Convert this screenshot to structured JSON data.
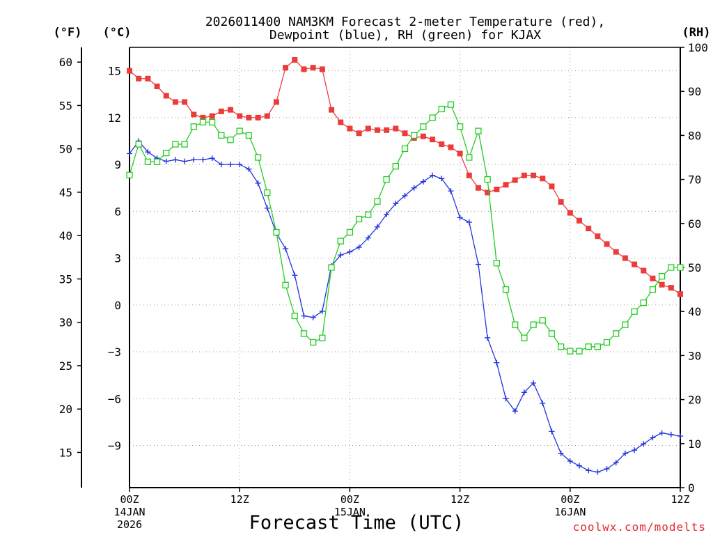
{
  "chart_data": {
    "type": "line",
    "title_lines": [
      "2026011400 NAM3KM Forecast 2-meter Temperature (red),",
      "Dewpoint (blue), RH (green) for KJAX"
    ],
    "xlabel": "Forecast Time (UTC)",
    "credit": "coolwx.com/modelts",
    "units": {
      "fahrenheit": "(°F)",
      "celsius": "(°C)",
      "rh": "(RH)"
    },
    "x_range_hours": [
      0,
      60
    ],
    "x_ticks": [
      {
        "hour": 0,
        "label": "00Z",
        "sub1": "14JAN",
        "sub2": "2026"
      },
      {
        "hour": 12,
        "label": "12Z",
        "sub1": "",
        "sub2": ""
      },
      {
        "hour": 24,
        "label": "00Z",
        "sub1": "15JAN",
        "sub2": ""
      },
      {
        "hour": 36,
        "label": "12Z",
        "sub1": "",
        "sub2": ""
      },
      {
        "hour": 48,
        "label": "00Z",
        "sub1": "16JAN",
        "sub2": ""
      },
      {
        "hour": 60,
        "label": "12Z",
        "sub1": "",
        "sub2": ""
      }
    ],
    "celsius_axis": {
      "range": [
        -11.7,
        16.5
      ],
      "ticks": [
        15,
        12,
        9,
        6,
        3,
        0,
        -3,
        -6,
        -9
      ],
      "tick_labels": [
        "15",
        "12",
        "9",
        "6",
        "3",
        "0",
        "−3",
        "−6",
        "−9"
      ]
    },
    "fahrenheit_axis": {
      "ticks": [
        60,
        55,
        50,
        45,
        40,
        35,
        30,
        25,
        20,
        15
      ]
    },
    "rh_axis": {
      "range": [
        0,
        100
      ],
      "ticks": [
        100,
        90,
        80,
        70,
        60,
        50,
        40,
        30,
        20,
        10,
        0
      ]
    },
    "grid": true,
    "series": [
      {
        "name": "2-meter Temperature",
        "color": "#ec3b3b",
        "marker": "filled-square",
        "units": "celsius",
        "x": [
          0,
          1,
          2,
          3,
          4,
          5,
          6,
          7,
          8,
          9,
          10,
          11,
          12,
          13,
          14,
          15,
          16,
          17,
          18,
          19,
          20,
          21,
          22,
          23,
          24,
          25,
          26,
          27,
          28,
          29,
          30,
          31,
          32,
          33,
          34,
          35,
          36,
          37,
          38,
          39,
          40,
          41,
          42,
          43,
          44,
          45,
          46,
          47,
          48,
          49,
          50,
          51,
          52,
          53,
          54,
          55,
          56,
          57,
          58,
          59,
          60
        ],
        "values": [
          15.0,
          14.5,
          14.5,
          14.0,
          13.4,
          13.0,
          13.0,
          12.2,
          12.0,
          12.1,
          12.4,
          12.5,
          12.1,
          12.0,
          12.0,
          12.1,
          13.0,
          15.2,
          15.7,
          15.1,
          15.2,
          15.1,
          12.5,
          11.7,
          11.3,
          11.0,
          11.3,
          11.2,
          11.2,
          11.3,
          11.0,
          10.7,
          10.8,
          10.6,
          10.3,
          10.1,
          9.7,
          8.3,
          7.5,
          7.2,
          7.4,
          7.7,
          8.0,
          8.3,
          8.3,
          8.1,
          7.6,
          6.6,
          5.9,
          5.4,
          4.9,
          4.4,
          3.9,
          3.4,
          3.0,
          2.6,
          2.2,
          1.7,
          1.3,
          1.1,
          0.7
        ]
      },
      {
        "name": "Dewpoint",
        "color": "#2233dd",
        "marker": "plus",
        "units": "celsius",
        "x": [
          0,
          1,
          2,
          3,
          4,
          5,
          6,
          7,
          8,
          9,
          10,
          11,
          12,
          13,
          14,
          15,
          16,
          17,
          18,
          19,
          20,
          21,
          22,
          23,
          24,
          25,
          26,
          27,
          28,
          29,
          30,
          31,
          32,
          33,
          34,
          35,
          36,
          37,
          38,
          39,
          40,
          41,
          42,
          43,
          44,
          45,
          46,
          47,
          48,
          49,
          50,
          51,
          52,
          53,
          54,
          55,
          56,
          57,
          58,
          59,
          60
        ],
        "values": [
          9.7,
          10.5,
          9.8,
          9.4,
          9.2,
          9.3,
          9.2,
          9.3,
          9.3,
          9.4,
          9.0,
          9.0,
          9.0,
          8.7,
          7.8,
          6.2,
          4.6,
          3.6,
          1.9,
          -0.7,
          -0.8,
          -0.4,
          2.5,
          3.2,
          3.4,
          3.7,
          4.3,
          5.0,
          5.8,
          6.5,
          7.0,
          7.5,
          7.9,
          8.3,
          8.1,
          7.3,
          5.6,
          5.3,
          2.6,
          -2.1,
          -3.7,
          -6.0,
          -6.8,
          -5.6,
          -5.0,
          -6.3,
          -8.1,
          -9.5,
          -10.0,
          -10.3,
          -10.6,
          -10.7,
          -10.5,
          -10.1,
          -9.5,
          -9.3,
          -8.9,
          -8.5,
          -8.2,
          -8.3,
          -8.4
        ]
      },
      {
        "name": "Relative Humidity",
        "color": "#22cc22",
        "marker": "open-square",
        "units": "rh",
        "x": [
          0,
          1,
          2,
          3,
          4,
          5,
          6,
          7,
          8,
          9,
          10,
          11,
          12,
          13,
          14,
          15,
          16,
          17,
          18,
          19,
          20,
          21,
          22,
          23,
          24,
          25,
          26,
          27,
          28,
          29,
          30,
          31,
          32,
          33,
          34,
          35,
          36,
          37,
          38,
          39,
          40,
          41,
          42,
          43,
          44,
          45,
          46,
          47,
          48,
          49,
          50,
          51,
          52,
          53,
          54,
          55,
          56,
          57,
          58,
          59,
          60
        ],
        "values": [
          71,
          78,
          74,
          74,
          76,
          78,
          78,
          82,
          83,
          83,
          80,
          79,
          81,
          80,
          75,
          67,
          58,
          46,
          39,
          35,
          33,
          34,
          50,
          56,
          58,
          61,
          62,
          65,
          70,
          73,
          77,
          80,
          82,
          84,
          86,
          87,
          82,
          75,
          81,
          70,
          51,
          45,
          37,
          34,
          37,
          38,
          35,
          32,
          31,
          31,
          32,
          32,
          33,
          35,
          37,
          40,
          42,
          45,
          48,
          50,
          50
        ]
      }
    ]
  }
}
